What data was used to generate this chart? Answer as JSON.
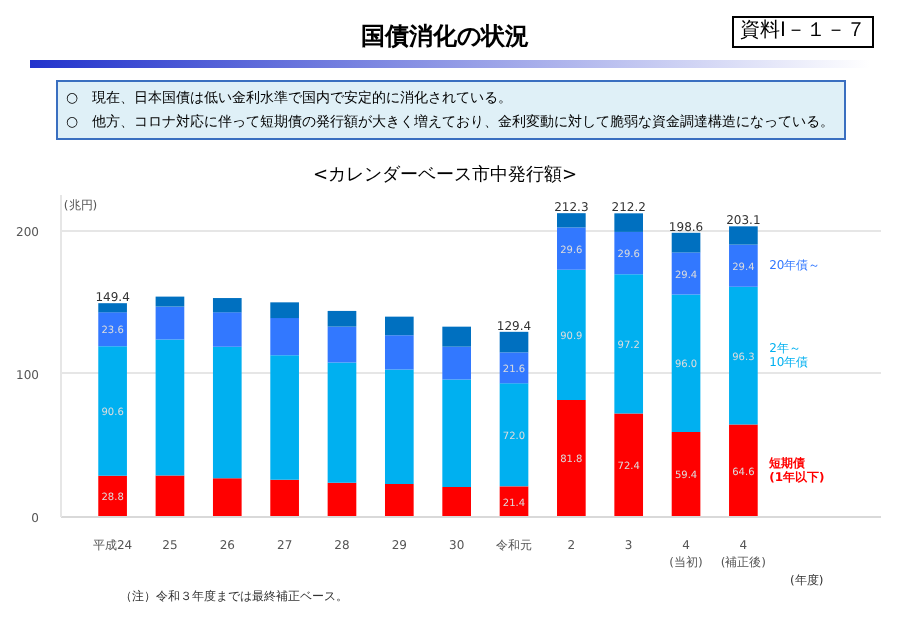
{
  "chart_data": {
    "type": "bar",
    "stacked": true,
    "title": "国債消化の状況",
    "subtitle": "<カレンダーベース市中発行額>",
    "ylabel": "(兆円)",
    "xlabel": "(年度)",
    "annotations": [
      "資料Ⅰ－１－７",
      "○　現在、日本国債は低い金利水準で国内で安定的に消化されている。",
      "○　他方、コロナ対応に伴って短期債の発行額が大きく増えており、金利変動に対して脆弱な資金調達構造になっている。",
      "（注）令和３年度までは最終補正ベース。"
    ],
    "categories": [
      "平成24",
      "25",
      "26",
      "27",
      "28",
      "29",
      "30",
      "令和元",
      "2",
      "3",
      "4\n(当初)",
      "4\n(補正後)"
    ],
    "ylim": [
      0,
      225
    ],
    "yticks": [
      0,
      100,
      200
    ],
    "grid": "y",
    "series": [
      {
        "name": "短期債\n(1年以下)",
        "color": "#ff0000",
        "values": [
          28.8,
          29,
          27,
          26,
          24,
          23,
          21,
          21.4,
          81.8,
          72.4,
          59.4,
          64.6
        ],
        "value_labels": [
          "28.8",
          null,
          null,
          null,
          null,
          null,
          null,
          "21.4",
          "81.8",
          "72.4",
          "59.4",
          "64.6"
        ]
      },
      {
        "name": "2年～\n10年債",
        "color": "#00b0f0",
        "values": [
          90.6,
          95,
          92,
          87,
          84,
          80,
          75,
          72.0,
          90.9,
          97.2,
          96.0,
          96.3
        ],
        "value_labels": [
          "90.6",
          null,
          null,
          null,
          null,
          null,
          null,
          "72.0",
          "90.9",
          "97.2",
          "96.0",
          "96.3"
        ]
      },
      {
        "name": "20年債～",
        "color": "#3278ff",
        "values": [
          23.6,
          23,
          24,
          26,
          25,
          24,
          23,
          21.6,
          29.6,
          29.6,
          29.4,
          29.4
        ],
        "value_labels": [
          "23.6",
          null,
          null,
          null,
          null,
          null,
          null,
          "21.6",
          "29.6",
          "29.6",
          "29.4",
          "29.4"
        ]
      },
      {
        "color": "#0070c0",
        "values": [
          6.4,
          7,
          10,
          11,
          11,
          13,
          14,
          14.4,
          10,
          13,
          13.8,
          12.8
        ]
      }
    ],
    "totals": [
      "149.4",
      null,
      null,
      null,
      null,
      null,
      null,
      "129.4",
      "212.3",
      "212.2",
      "198.6",
      "203.1"
    ]
  }
}
